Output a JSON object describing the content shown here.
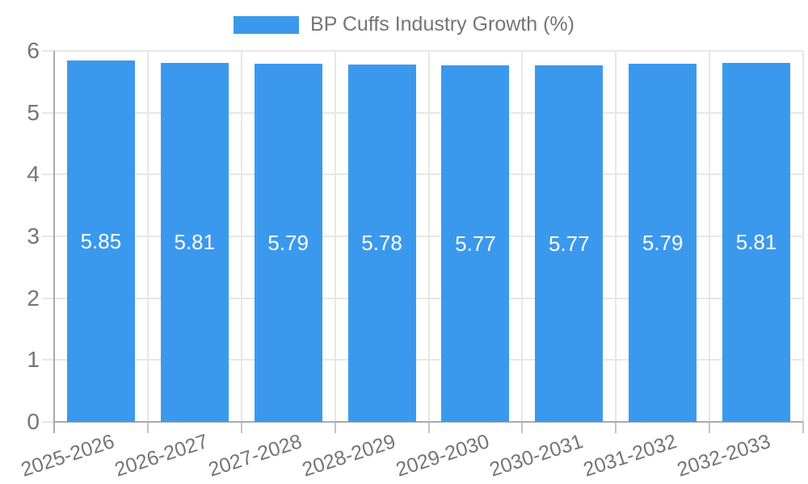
{
  "chart_data": {
    "type": "bar",
    "title": "BP Cuffs Industry Growth (%)",
    "legend": {
      "label": "BP Cuffs Industry Growth (%)",
      "position": "top-center"
    },
    "categories": [
      "2025-2026",
      "2026-2027",
      "2027-2028",
      "2028-2029",
      "2029-2030",
      "2030-2031",
      "2031-2032",
      "2032-2033"
    ],
    "values": [
      5.85,
      5.81,
      5.79,
      5.78,
      5.77,
      5.77,
      5.79,
      5.81
    ],
    "value_labels": [
      "5.85",
      "5.81",
      "5.79",
      "5.78",
      "5.77",
      "5.77",
      "5.79",
      "5.81"
    ],
    "xlabel": "",
    "ylabel": "",
    "ylim": [
      0,
      6
    ],
    "yticks": [
      0,
      1,
      2,
      3,
      4,
      5,
      6
    ],
    "grid": true,
    "x_label_rotation_deg": -18,
    "colors": {
      "bar": "#3b99ed",
      "grid": "#e7e7e7",
      "axis": "#ababab",
      "text": "#757575",
      "value_label": "#ffffff",
      "background": "#ffffff"
    }
  }
}
